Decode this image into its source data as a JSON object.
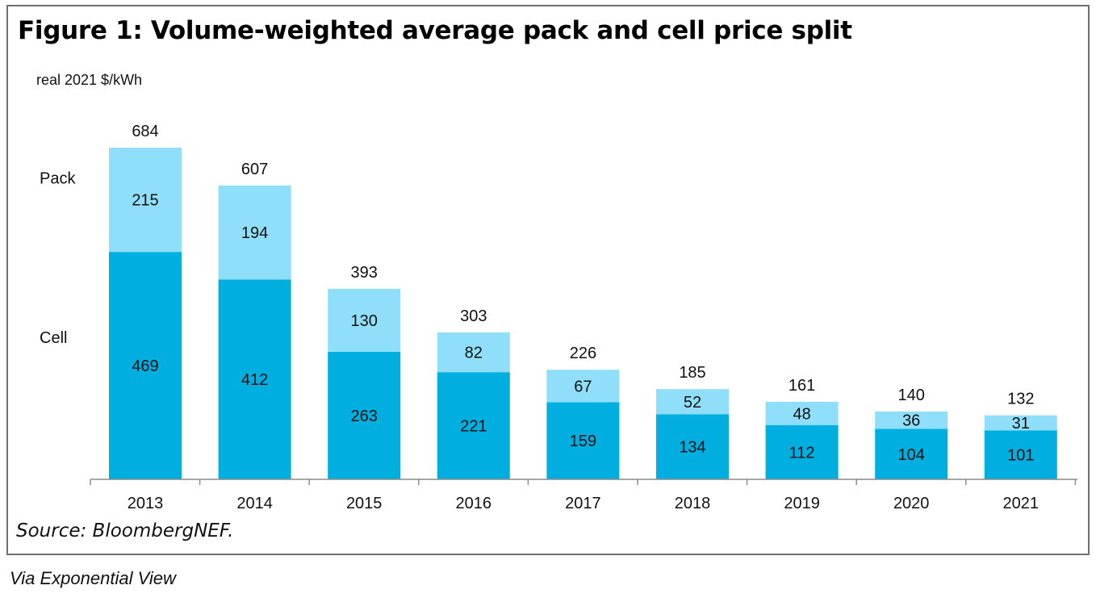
{
  "chart_data": {
    "type": "bar",
    "stacked": true,
    "title": "Figure 1: Volume-weighted average pack and cell price split",
    "unit_label": "real 2021 $/kWh",
    "categories": [
      "2013",
      "2014",
      "2015",
      "2016",
      "2017",
      "2018",
      "2019",
      "2020",
      "2021"
    ],
    "series": [
      {
        "name": "Cell",
        "color": "#00aee0",
        "values": [
          469,
          412,
          263,
          221,
          159,
          134,
          112,
          104,
          101
        ]
      },
      {
        "name": "Pack",
        "color": "#8fdffb",
        "values": [
          215,
          194,
          130,
          82,
          67,
          52,
          48,
          36,
          31
        ]
      }
    ],
    "totals": [
      684,
      607,
      393,
      303,
      226,
      185,
      161,
      140,
      132
    ],
    "legend_placement": "left, beside first bar",
    "grid": false,
    "ylim": [
      0,
      684
    ]
  },
  "source": "Source: BloombergNEF.",
  "footnote": "Via Exponential View"
}
